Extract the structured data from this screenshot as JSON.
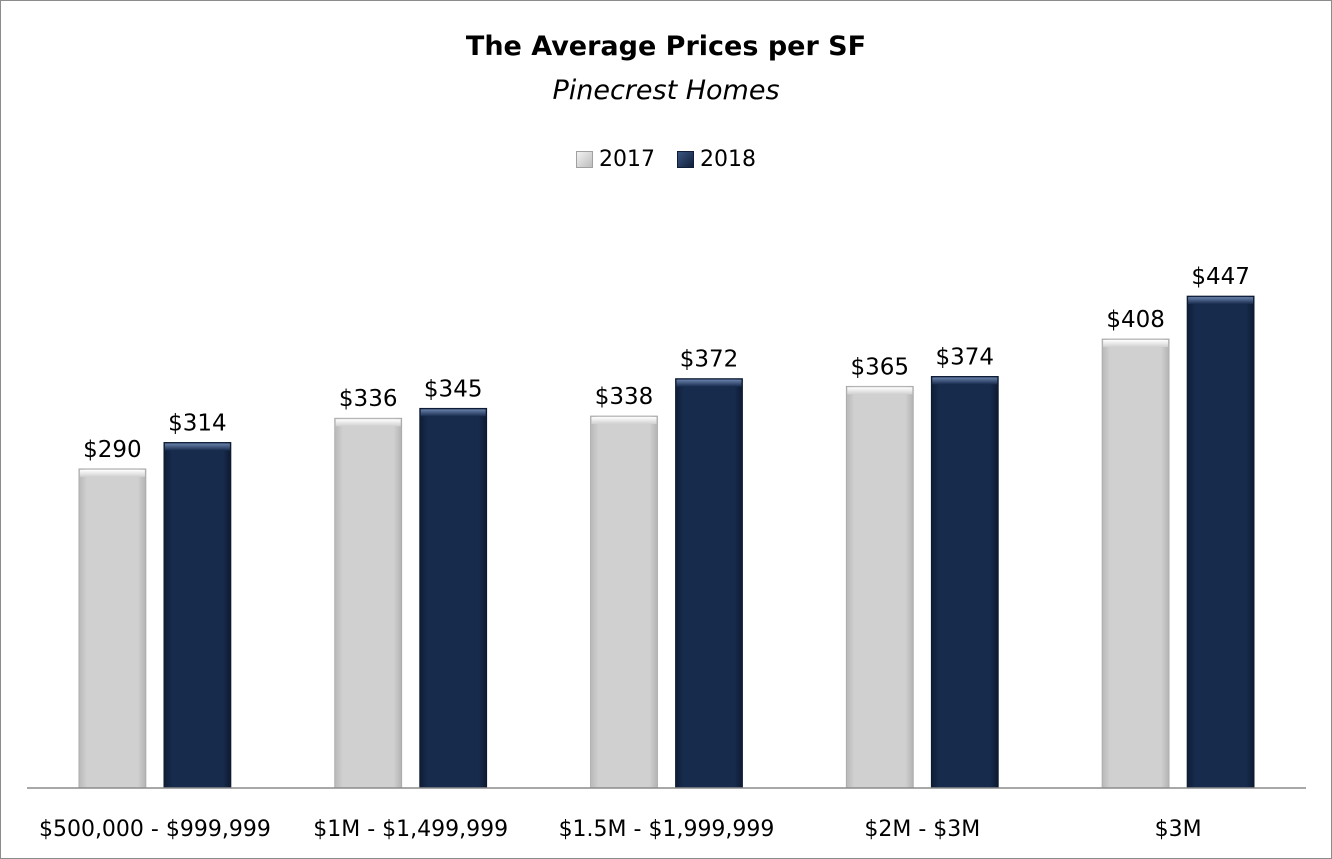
{
  "chart_data": {
    "type": "bar",
    "title": "The Average Prices per SF",
    "subtitle": "Pinecrest Homes",
    "categories": [
      "$500,000 - $999,999",
      "$1M - $1,499,999",
      "$1.5M - $1,999,999",
      "$2M - $3M",
      "$3M"
    ],
    "series": [
      {
        "name": "2017",
        "values": [
          290,
          336,
          338,
          365,
          408
        ],
        "labels": [
          "$290",
          "$336",
          "$338",
          "$365",
          "$408"
        ],
        "color": "#cfcfcf"
      },
      {
        "name": "2018",
        "values": [
          314,
          345,
          372,
          374,
          447
        ],
        "labels": [
          "$314",
          "$345",
          "$372",
          "$374",
          "$447"
        ],
        "color": "#15294a"
      }
    ],
    "ylim": [
      0,
      600
    ],
    "grid": false,
    "legend_position": "top-center"
  }
}
